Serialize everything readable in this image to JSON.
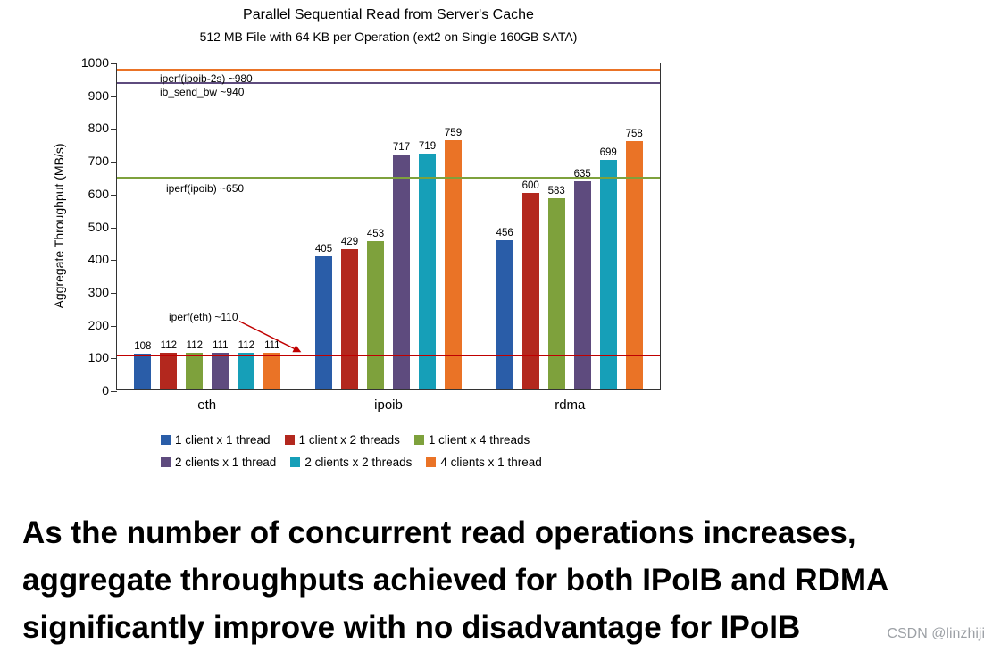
{
  "chart_data": {
    "type": "bar",
    "title": "Parallel Sequential Read from Server's Cache",
    "subtitle": "512 MB File with 64 KB per Operation (ext2 on Single 160GB SATA)",
    "ylabel": "Aggregate Throughput (MB/s)",
    "xlabel": "",
    "ylim": [
      0,
      1000
    ],
    "ytick_interval": 100,
    "grid": false,
    "legend_position": "bottom",
    "categories": [
      "eth",
      "ipoib",
      "rdma"
    ],
    "series": [
      {
        "name": "1 client x 1 thread",
        "color": "#2A5DA8",
        "values": [
          108,
          405,
          456
        ]
      },
      {
        "name": "1 client x 2 threads",
        "color": "#B3281E",
        "values": [
          112,
          429,
          600
        ]
      },
      {
        "name": "1 client x 4 threads",
        "color": "#7EA13C",
        "values": [
          112,
          453,
          583
        ]
      },
      {
        "name": "2 clients x 1 thread",
        "color": "#5E4B7E",
        "values": [
          111,
          717,
          635
        ]
      },
      {
        "name": "2 clients x 2 threads",
        "color": "#169FB8",
        "values": [
          112,
          719,
          699
        ]
      },
      {
        "name": "4 clients x 1 thread",
        "color": "#EA7326",
        "values": [
          111,
          759,
          758
        ]
      }
    ],
    "reference_lines": [
      {
        "label": "iperf(ipoib-2s) ~980",
        "value": 980,
        "color": "#EA7326"
      },
      {
        "label": "ib_send_bw ~940",
        "value": 940,
        "color": "#5E4B7E"
      },
      {
        "label": "iperf(ipoib) ~650",
        "value": 650,
        "color": "#7EA13C"
      },
      {
        "label": "iperf(eth) ~110",
        "value": 110,
        "color": "#C00000"
      }
    ]
  },
  "caption": {
    "lines": [
      "As the number of concurrent read operations increases,",
      "aggregate throughputs achieved for both IPoIB and RDMA",
      "significantly improve with no disadvantage for IPoIB"
    ]
  },
  "watermark": "CSDN @linzhiji"
}
